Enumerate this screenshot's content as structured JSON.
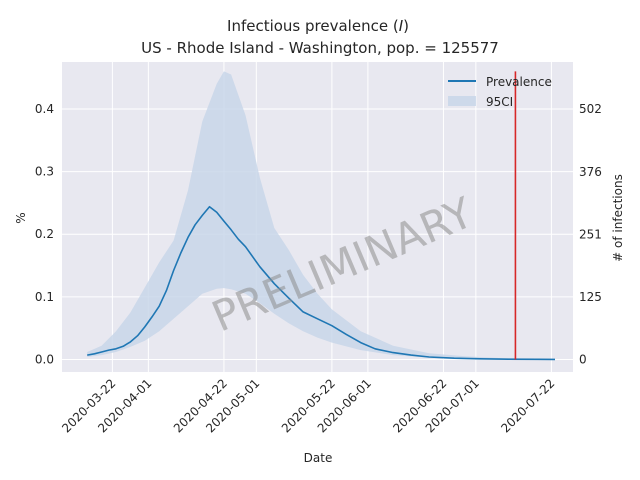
{
  "chart_data": {
    "type": "line",
    "title_line1": "Infectious prevalence (",
    "title_italic": "I",
    "title_line1_end": ")",
    "title_line2": "US - Rhode Island - Washington, pop. = 125577",
    "xlabel": "Date",
    "ylabel": "%",
    "ylabel_right": "# of infections",
    "watermark": "PRELIMINARY",
    "x_ticks": [
      "2020-03-22",
      "2020-04-01",
      "2020-04-22",
      "2020-05-01",
      "2020-05-22",
      "2020-06-01",
      "2020-06-22",
      "2020-07-01",
      "2020-07-22"
    ],
    "y_ticks": [
      "0.0",
      "0.1",
      "0.2",
      "0.3",
      "0.4"
    ],
    "y_ticks_right": [
      "0",
      "125",
      "251",
      "376",
      "502"
    ],
    "ylim": [
      -0.02,
      0.475
    ],
    "xlim": [
      "2020-03-08",
      "2020-07-28"
    ],
    "grid": true,
    "legend": {
      "placement": "top-right",
      "entries": [
        "Prevalence",
        "95CI"
      ]
    },
    "colors": {
      "line": "#1f77b4",
      "band": "#c6d5e8",
      "marker": "#d62728",
      "background": "#e8e8f0",
      "grid": "#ffffff"
    },
    "vertical_marker": {
      "x": "2020-07-12",
      "ymin": 0,
      "ymax": 0.46
    },
    "series": [
      {
        "name": "Prevalence",
        "x": [
          "2020-03-15",
          "2020-03-17",
          "2020-03-19",
          "2020-03-21",
          "2020-03-23",
          "2020-03-25",
          "2020-03-27",
          "2020-03-29",
          "2020-03-31",
          "2020-04-02",
          "2020-04-04",
          "2020-04-06",
          "2020-04-08",
          "2020-04-10",
          "2020-04-12",
          "2020-04-14",
          "2020-04-16",
          "2020-04-18",
          "2020-04-20",
          "2020-04-22",
          "2020-04-24",
          "2020-04-26",
          "2020-04-28",
          "2020-05-02",
          "2020-05-06",
          "2020-05-10",
          "2020-05-14",
          "2020-05-18",
          "2020-05-22",
          "2020-05-26",
          "2020-05-30",
          "2020-06-03",
          "2020-06-08",
          "2020-06-13",
          "2020-06-18",
          "2020-06-25",
          "2020-07-02",
          "2020-07-10",
          "2020-07-18",
          "2020-07-23"
        ],
        "values": [
          0.007,
          0.009,
          0.012,
          0.015,
          0.017,
          0.021,
          0.028,
          0.038,
          0.052,
          0.068,
          0.085,
          0.11,
          0.142,
          0.17,
          0.195,
          0.215,
          0.23,
          0.244,
          0.235,
          0.221,
          0.207,
          0.192,
          0.18,
          0.148,
          0.121,
          0.098,
          0.076,
          0.065,
          0.054,
          0.04,
          0.027,
          0.017,
          0.011,
          0.007,
          0.004,
          0.002,
          0.001,
          0.0005,
          0.0002,
          0.0001
        ]
      },
      {
        "name": "95CI",
        "x": [
          "2020-03-15",
          "2020-03-19",
          "2020-03-23",
          "2020-03-27",
          "2020-03-31",
          "2020-04-04",
          "2020-04-08",
          "2020-04-12",
          "2020-04-16",
          "2020-04-20",
          "2020-04-22",
          "2020-04-24",
          "2020-04-28",
          "2020-05-02",
          "2020-05-06",
          "2020-05-10",
          "2020-05-14",
          "2020-05-18",
          "2020-05-22",
          "2020-05-30",
          "2020-06-08",
          "2020-06-18",
          "2020-06-28",
          "2020-07-10",
          "2020-07-23"
        ],
        "lower": [
          0.004,
          0.007,
          0.012,
          0.02,
          0.03,
          0.045,
          0.065,
          0.085,
          0.105,
          0.113,
          0.114,
          0.112,
          0.105,
          0.09,
          0.073,
          0.058,
          0.045,
          0.035,
          0.027,
          0.015,
          0.007,
          0.003,
          0.0015,
          0.0005,
          0.0001
        ],
        "upper": [
          0.012,
          0.022,
          0.045,
          0.075,
          0.115,
          0.155,
          0.19,
          0.27,
          0.38,
          0.44,
          0.46,
          0.455,
          0.39,
          0.29,
          0.21,
          0.175,
          0.135,
          0.105,
          0.08,
          0.045,
          0.022,
          0.01,
          0.005,
          0.0015,
          0.0003
        ]
      }
    ]
  }
}
